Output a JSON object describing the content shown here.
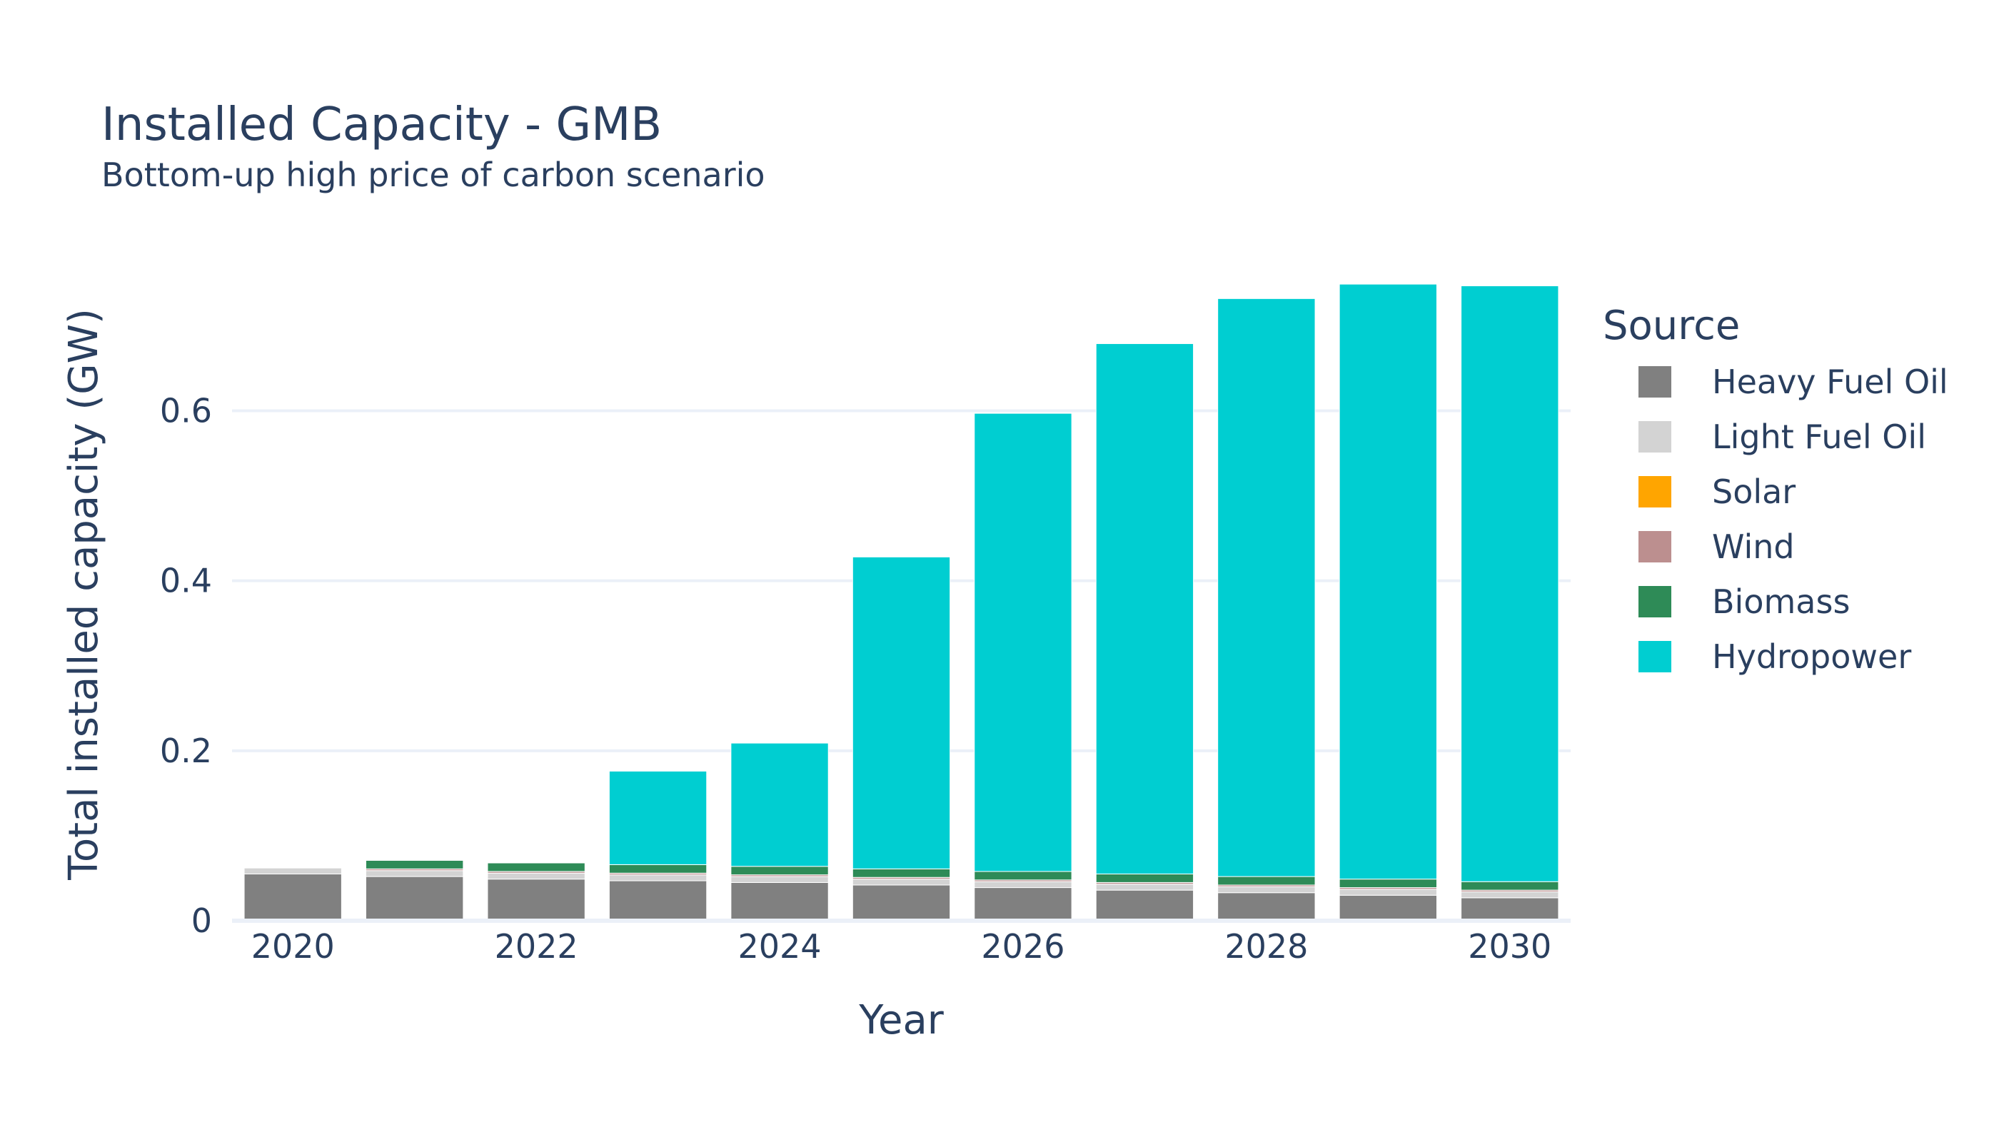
{
  "chart_data": {
    "type": "bar",
    "barmode": "stack",
    "title": "Installed Capacity - GMB",
    "subtitle": "Bottom-up high price of carbon scenario",
    "xlabel": "Year",
    "ylabel": "Total installed capacity (GW)",
    "ylim": [
      0,
      0.76
    ],
    "yticks": [
      0,
      0.2,
      0.4,
      0.6
    ],
    "ytick_labels": [
      "0",
      "0.2",
      "0.4",
      "0.6"
    ],
    "xticks": [
      2020,
      2022,
      2024,
      2026,
      2028,
      2030
    ],
    "xtick_labels": [
      "2020",
      "2022",
      "2024",
      "2026",
      "2028",
      "2030"
    ],
    "categories": [
      2020,
      2021,
      2022,
      2023,
      2024,
      2025,
      2026,
      2027,
      2028,
      2029,
      2030
    ],
    "legend_title": "Source",
    "legend_position": "right",
    "grid": true,
    "series": [
      {
        "name": "Heavy Fuel Oil",
        "color": "#808080",
        "values": [
          0.055,
          0.052,
          0.049,
          0.047,
          0.045,
          0.042,
          0.039,
          0.036,
          0.033,
          0.03,
          0.027
        ]
      },
      {
        "name": "Light Fuel Oil",
        "color": "#d3d3d3",
        "values": [
          0.007,
          0.007,
          0.007,
          0.007,
          0.007,
          0.007,
          0.007,
          0.007,
          0.007,
          0.007,
          0.007
        ]
      },
      {
        "name": "Solar",
        "color": "#ffa500",
        "values": [
          0.0,
          0.0,
          0.0,
          0.0,
          0.0,
          0.0,
          0.0,
          0.0,
          0.0,
          0.0,
          0.0
        ]
      },
      {
        "name": "Wind",
        "color": "#bc8f8f",
        "values": [
          0.0,
          0.002,
          0.002,
          0.002,
          0.002,
          0.002,
          0.002,
          0.002,
          0.002,
          0.002,
          0.002
        ]
      },
      {
        "name": "Biomass",
        "color": "#2e8b57",
        "values": [
          0.0,
          0.01,
          0.01,
          0.01,
          0.01,
          0.01,
          0.01,
          0.01,
          0.01,
          0.01,
          0.01
        ]
      },
      {
        "name": "Hydropower",
        "color": "#00ced1",
        "values": [
          0.0,
          0.0,
          0.0,
          0.11,
          0.145,
          0.367,
          0.539,
          0.624,
          0.68,
          0.7,
          0.701
        ]
      }
    ]
  }
}
